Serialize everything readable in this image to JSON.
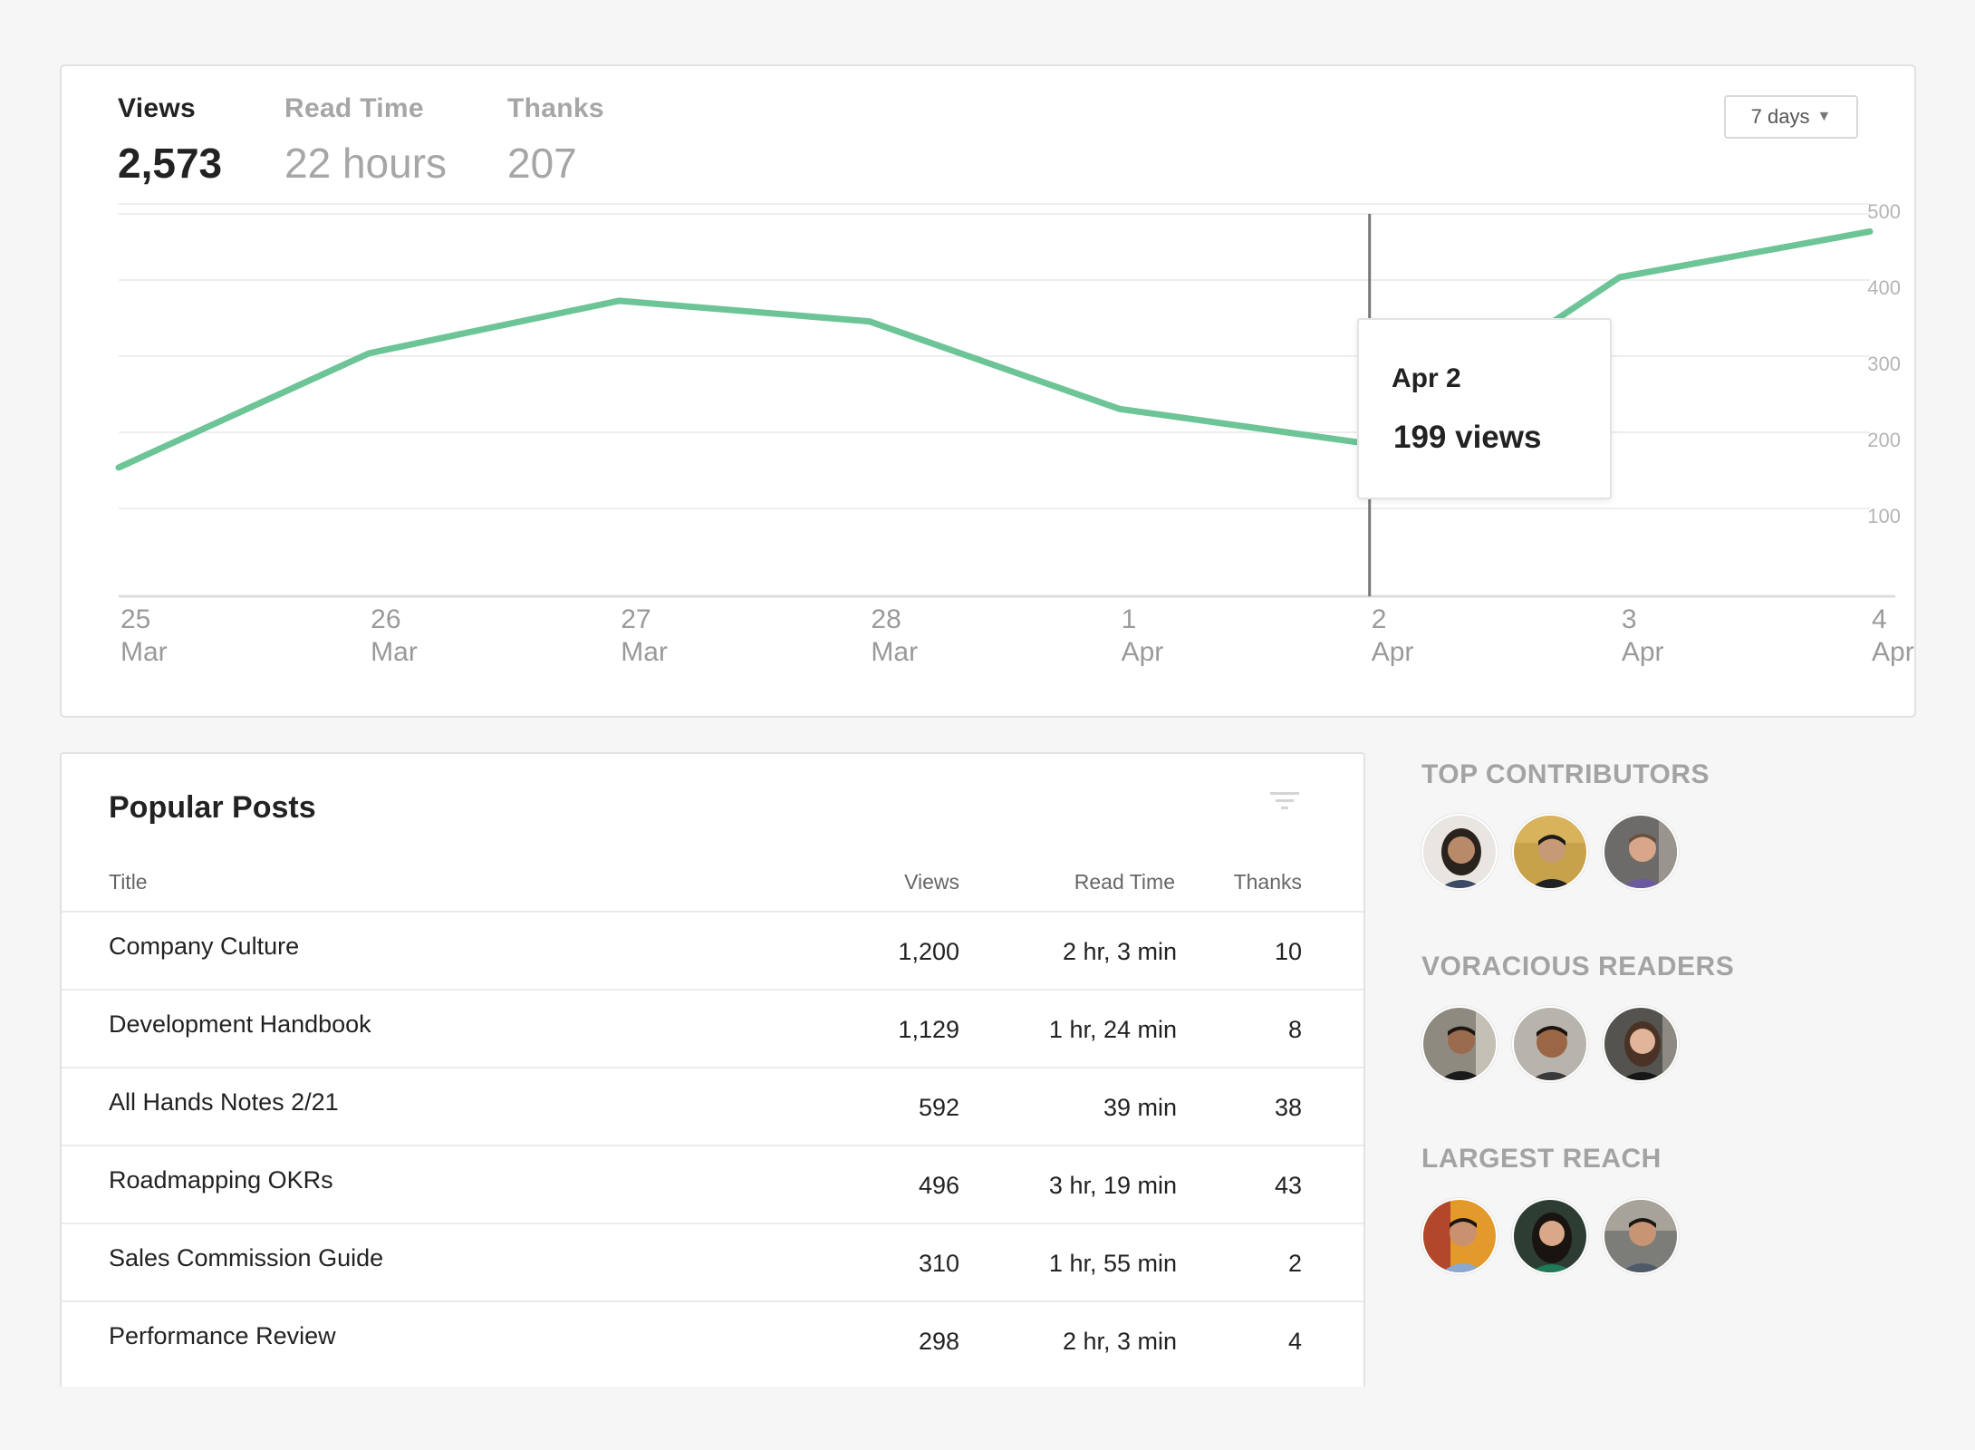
{
  "stats": {
    "views": {
      "label": "Views",
      "value": "2,573"
    },
    "read_time": {
      "label": "Read Time",
      "value": "22 hours"
    },
    "thanks": {
      "label": "Thanks",
      "value": "207"
    }
  },
  "range_selector": {
    "label": "7 days"
  },
  "chart_data": {
    "type": "line",
    "x": [
      "25 Mar",
      "26 Mar",
      "27 Mar",
      "28 Mar",
      "1 Apr",
      "2 Apr",
      "3 Apr",
      "4 Apr"
    ],
    "x_ticks": [
      {
        "day": "25",
        "month": "Mar"
      },
      {
        "day": "26",
        "month": "Mar"
      },
      {
        "day": "27",
        "month": "Mar"
      },
      {
        "day": "28",
        "month": "Mar"
      },
      {
        "day": "1",
        "month": "Apr"
      },
      {
        "day": "2",
        "month": "Apr"
      },
      {
        "day": "3",
        "month": "Apr"
      },
      {
        "day": "4",
        "month": "Apr"
      }
    ],
    "values": [
      168,
      318,
      387,
      360,
      245,
      199,
      418,
      478
    ],
    "y_ticks": [
      "500",
      "400",
      "300",
      "200",
      "100"
    ],
    "ylim": [
      0,
      500
    ],
    "grid": true,
    "line_color": "#6cc497",
    "highlight": {
      "index": 5,
      "date": "Apr 2",
      "value_label": "199 views"
    }
  },
  "posts": {
    "title": "Popular Posts",
    "columns": {
      "title": "Title",
      "views": "Views",
      "read_time": "Read Time",
      "thanks": "Thanks"
    },
    "rows": [
      {
        "title": "Company Culture",
        "views": "1,200",
        "read_time": "2 hr, 3 min",
        "thanks": "10"
      },
      {
        "title": "Development Handbook",
        "views": "1,129",
        "read_time": "1 hr, 24 min",
        "thanks": "8"
      },
      {
        "title": "All Hands Notes 2/21",
        "views": "592",
        "read_time": "39 min",
        "thanks": "38"
      },
      {
        "title": "Roadmapping OKRs",
        "views": "496",
        "read_time": "3 hr, 19 min",
        "thanks": "43"
      },
      {
        "title": "Sales Commission Guide",
        "views": "310",
        "read_time": "1 hr, 55 min",
        "thanks": "2"
      },
      {
        "title": "Performance Review",
        "views": "298",
        "read_time": "2 hr, 3 min",
        "thanks": "4"
      }
    ]
  },
  "people": {
    "top_contributors": {
      "heading": "TOP CONTRIBUTORS"
    },
    "voracious_readers": {
      "heading": "VORACIOUS READERS"
    },
    "largest_reach": {
      "heading": "LARGEST REACH"
    }
  }
}
